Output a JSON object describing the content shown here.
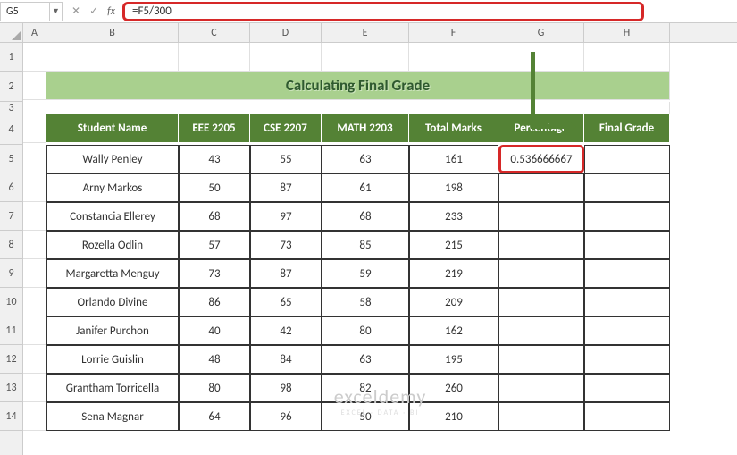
{
  "formula_bar": {
    "cell_ref": "G5",
    "formula": "=F5/300"
  },
  "columns": [
    "A",
    "B",
    "C",
    "D",
    "E",
    "F",
    "G",
    "H"
  ],
  "rows": [
    "1",
    "2",
    "3",
    "4",
    "5",
    "6",
    "7",
    "8",
    "9",
    "10",
    "11",
    "12",
    "13",
    "14"
  ],
  "title": "Calculating Final Grade",
  "headers": {
    "b": "Student Name",
    "c": "EEE 2205",
    "d": "CSE 2207",
    "e": "MATH 2203",
    "f": "Total Marks",
    "g": "Percentage",
    "h": "Final Grade"
  },
  "data": [
    {
      "name": "Wally Penley",
      "c": "43",
      "d": "55",
      "e": "63",
      "f": "161",
      "g": "0.536666667"
    },
    {
      "name": "Arny Markos",
      "c": "50",
      "d": "87",
      "e": "61",
      "f": "198",
      "g": ""
    },
    {
      "name": "Constancia Ellerey",
      "c": "68",
      "d": "97",
      "e": "68",
      "f": "233",
      "g": ""
    },
    {
      "name": "Rozella Odlin",
      "c": "57",
      "d": "73",
      "e": "85",
      "f": "215",
      "g": ""
    },
    {
      "name": "Margaretta Menguy",
      "c": "73",
      "d": "87",
      "e": "59",
      "f": "219",
      "g": ""
    },
    {
      "name": "Orlando Divine",
      "c": "86",
      "d": "65",
      "e": "58",
      "f": "209",
      "g": ""
    },
    {
      "name": "Janifer Purchon",
      "c": "40",
      "d": "42",
      "e": "80",
      "f": "162",
      "g": ""
    },
    {
      "name": "Lorrie Guislin",
      "c": "48",
      "d": "84",
      "e": "63",
      "f": "195",
      "g": ""
    },
    {
      "name": "Grantham Torricella",
      "c": "80",
      "d": "98",
      "e": "82",
      "f": "260",
      "g": ""
    },
    {
      "name": "Sena Magnar",
      "c": "64",
      "d": "96",
      "e": "50",
      "f": "210",
      "g": ""
    }
  ],
  "watermark": {
    "main": "exceldemy",
    "sub": "EXCEL · DATA · BI"
  },
  "colors": {
    "header_bg": "#548235",
    "title_bg": "#a9d08e",
    "callout": "#d62828"
  }
}
